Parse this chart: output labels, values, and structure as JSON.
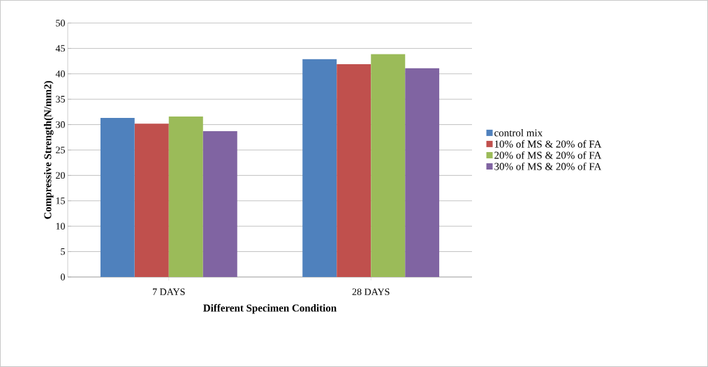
{
  "chart_data": {
    "type": "bar",
    "xlabel": "Different Specimen Condition",
    "ylabel": "Compressive Strength(N/mm2)",
    "categories": [
      "7 DAYS",
      "28 DAYS"
    ],
    "series": [
      {
        "name": "control mix",
        "color": "#4f81bd",
        "values": [
          31.3,
          42.9
        ]
      },
      {
        "name": "10% of MS & 20% of FA",
        "color": "#c0504d",
        "values": [
          30.2,
          41.9
        ]
      },
      {
        "name": "20% of MS & 20% of FA",
        "color": "#9bbb59",
        "values": [
          31.6,
          43.9
        ]
      },
      {
        "name": "30% of MS & 20% of FA",
        "color": "#8064a2",
        "values": [
          28.7,
          41.1
        ]
      }
    ],
    "ylim": [
      0,
      50
    ],
    "yticks": [
      0,
      5,
      10,
      15,
      20,
      25,
      30,
      35,
      40,
      45,
      50
    ],
    "grid": "y",
    "legend": "right"
  }
}
